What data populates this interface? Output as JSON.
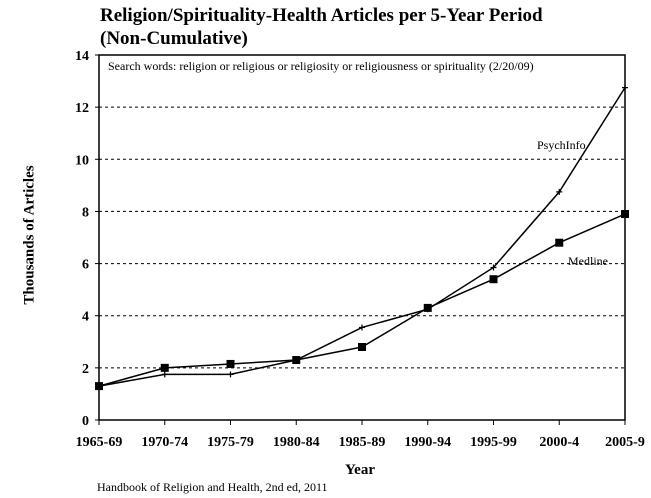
{
  "chart_data": {
    "type": "line",
    "title": "Religion/Spirituality-Health Articles per 5-Year Period",
    "subtitle": "(Non-Cumulative)",
    "xlabel": "Year",
    "ylabel": "Thousands of Articles",
    "categories": [
      "1965-69",
      "1970-74",
      "1975-79",
      "1980-84",
      "1985-89",
      "1990-94",
      "1995-99",
      "2000-4",
      "2005-9"
    ],
    "ylim": [
      0,
      14
    ],
    "yticks": [
      "0",
      "2",
      "4",
      "6",
      "8",
      "10",
      "12",
      "14"
    ],
    "grid": true,
    "annotation": "Search words: religion or religious or religiosity or religiousness or spirituality (2/20/09)",
    "series": [
      {
        "name": "PsychInfo",
        "marker": "plus",
        "values": [
          1.3,
          1.75,
          1.75,
          2.3,
          3.55,
          4.25,
          5.85,
          8.75,
          12.75
        ]
      },
      {
        "name": "Medline",
        "marker": "square",
        "values": [
          1.3,
          2.0,
          2.15,
          2.3,
          2.8,
          4.3,
          5.4,
          6.8,
          7.9
        ]
      }
    ],
    "source": "Handbook of Religion and Health, 2nd ed, 2011"
  }
}
